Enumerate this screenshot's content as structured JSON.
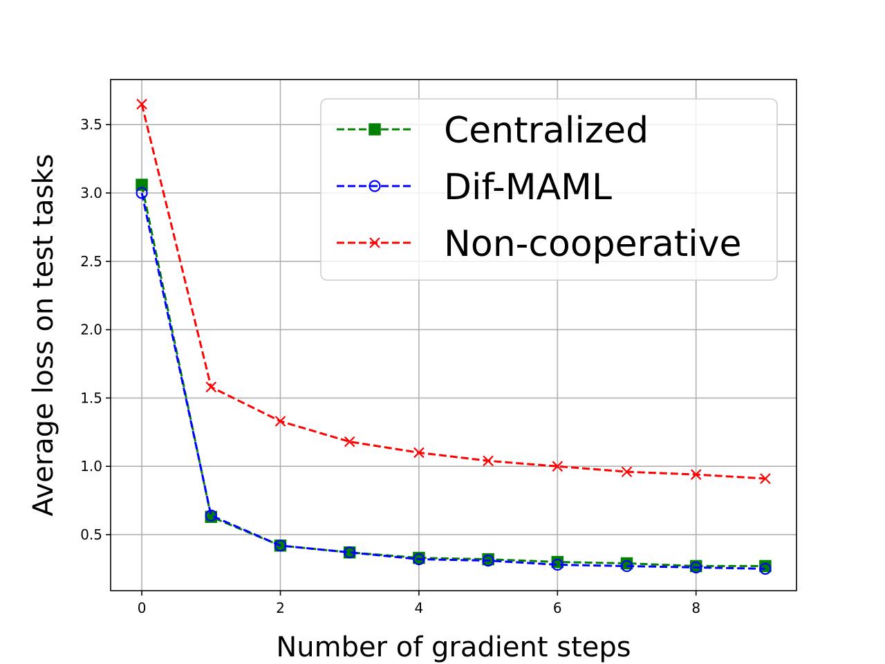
{
  "chart_data": {
    "type": "line",
    "title": "",
    "xlabel": "Number of gradient steps",
    "ylabel": "Average loss on test tasks",
    "xlim": [
      -0.45,
      9.45
    ],
    "ylim": [
      0.09,
      3.83
    ],
    "xticks": [
      0,
      2,
      4,
      6,
      8
    ],
    "xtick_labels": [
      "0",
      "2",
      "4",
      "6",
      "8"
    ],
    "yticks": [
      0.5,
      1.0,
      1.5,
      2.0,
      2.5,
      3.0,
      3.5
    ],
    "ytick_labels": [
      "0.5",
      "1.0",
      "1.5",
      "2.0",
      "2.5",
      "3.0",
      "3.5"
    ],
    "grid": true,
    "legend_position": "top-right",
    "x": [
      0,
      1,
      2,
      3,
      4,
      5,
      6,
      7,
      8,
      9
    ],
    "series": [
      {
        "name": "Centralized",
        "color": "#008000",
        "linestyle": "dashed",
        "marker": "filled-square",
        "values": [
          3.06,
          0.63,
          0.42,
          0.37,
          0.33,
          0.32,
          0.3,
          0.29,
          0.27,
          0.27
        ]
      },
      {
        "name": "Dif-MAML",
        "color": "#0000ff",
        "linestyle": "dashed",
        "marker": "hollow-circle",
        "values": [
          3.0,
          0.64,
          0.42,
          0.37,
          0.32,
          0.31,
          0.28,
          0.27,
          0.26,
          0.25
        ]
      },
      {
        "name": "Non-cooperative",
        "color": "#ff0000",
        "linestyle": "dashed",
        "marker": "x",
        "values": [
          3.65,
          1.58,
          1.33,
          1.18,
          1.1,
          1.04,
          1.0,
          0.96,
          0.94,
          0.91
        ]
      }
    ]
  }
}
